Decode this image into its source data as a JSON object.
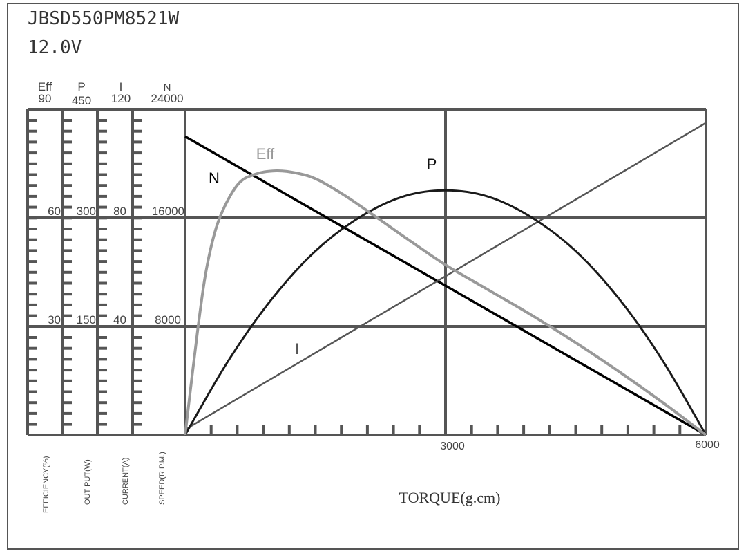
{
  "header": {
    "model": "JBSD550PM8521W",
    "voltage": "12.0V"
  },
  "chart_data": {
    "type": "line",
    "xlabel": "TORQUE(g.cm)",
    "xlim": [
      0,
      6000
    ],
    "x_tick_labels": [
      "3000",
      "6000"
    ],
    "grid": true,
    "axes": [
      {
        "key": "Eff",
        "name": "Eff",
        "label": "EFFICIENCY(%)",
        "max": 90,
        "ticks": [
          "30",
          "60",
          "90"
        ]
      },
      {
        "key": "P",
        "name": "P",
        "label": "OUT PUT(W)",
        "max": 450,
        "ticks": [
          "150",
          "300",
          "450"
        ]
      },
      {
        "key": "I",
        "name": "I",
        "label": "CURRENT(A)",
        "max": 120,
        "ticks": [
          "40",
          "80",
          "120"
        ]
      },
      {
        "key": "N",
        "name": "N",
        "label": "SPEED(R.P.M.)",
        "max": 24000,
        "ticks": [
          "8000",
          "16000",
          "24000"
        ]
      }
    ],
    "series": [
      {
        "name": "N",
        "axis": "N",
        "color": "#000000",
        "x": [
          0,
          6000
        ],
        "y": [
          22000,
          0
        ]
      },
      {
        "name": "I",
        "axis": "I",
        "color": "#555555",
        "x": [
          0,
          6000
        ],
        "y": [
          2,
          115
        ]
      },
      {
        "name": "P",
        "axis": "P",
        "color": "#1a1a1a",
        "x": [
          0,
          500,
          1000,
          1500,
          2000,
          2500,
          3000,
          3500,
          4000,
          4500,
          5000,
          5500,
          6000
        ],
        "y": [
          0,
          103,
          188,
          254,
          300,
          329,
          338,
          329,
          300,
          254,
          188,
          103,
          0
        ]
      },
      {
        "name": "Eff",
        "axis": "Eff",
        "color": "#999999",
        "x": [
          0,
          150,
          255,
          390,
          600,
          800,
          1050,
          1300,
          1530,
          1850,
          2190,
          2600,
          3000,
          3500,
          4000,
          4500,
          5000,
          5500,
          6000
        ],
        "y": [
          0,
          30,
          47,
          59.5,
          69,
          72,
          73,
          72.3,
          70.5,
          66,
          60.4,
          53.5,
          47,
          40,
          33,
          25.5,
          17.5,
          9,
          0
        ]
      }
    ]
  }
}
